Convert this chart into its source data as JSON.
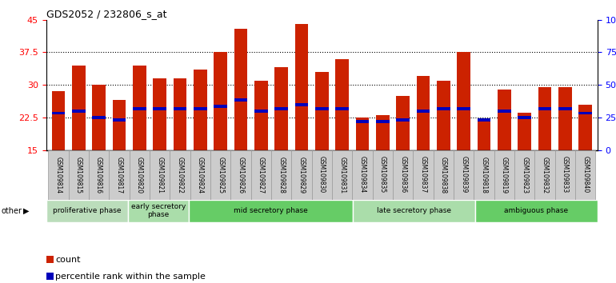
{
  "title": "GDS2052 / 232806_s_at",
  "samples": [
    "GSM109814",
    "GSM109815",
    "GSM109816",
    "GSM109817",
    "GSM109820",
    "GSM109821",
    "GSM109822",
    "GSM109824",
    "GSM109825",
    "GSM109826",
    "GSM109827",
    "GSM109828",
    "GSM109829",
    "GSM109830",
    "GSM109831",
    "GSM109834",
    "GSM109835",
    "GSM109836",
    "GSM109837",
    "GSM109838",
    "GSM109839",
    "GSM109818",
    "GSM109819",
    "GSM109823",
    "GSM109832",
    "GSM109833",
    "GSM109840"
  ],
  "count_values": [
    28.5,
    34.5,
    30.0,
    26.5,
    34.5,
    31.5,
    31.5,
    33.5,
    37.5,
    43.0,
    31.0,
    34.0,
    44.0,
    33.0,
    36.0,
    22.5,
    23.0,
    27.5,
    32.0,
    31.0,
    37.5,
    21.5,
    29.0,
    23.5,
    29.5,
    29.5,
    25.5
  ],
  "percentile_values": [
    23.5,
    24.0,
    22.5,
    22.0,
    24.5,
    24.5,
    24.5,
    24.5,
    25.0,
    26.5,
    24.0,
    24.5,
    25.5,
    24.5,
    24.5,
    21.5,
    21.5,
    22.0,
    24.0,
    24.5,
    24.5,
    22.0,
    24.0,
    22.5,
    24.5,
    24.5,
    23.5
  ],
  "phase_groups": [
    {
      "label": "proliferative phase",
      "start": 0,
      "end": 4,
      "color": "#bbddbb"
    },
    {
      "label": "early secretory\nphase",
      "start": 4,
      "end": 7,
      "color": "#aaddaa"
    },
    {
      "label": "mid secretory phase",
      "start": 7,
      "end": 15,
      "color": "#66cc66"
    },
    {
      "label": "late secretory phase",
      "start": 15,
      "end": 21,
      "color": "#aaddaa"
    },
    {
      "label": "ambiguous phase",
      "start": 21,
      "end": 27,
      "color": "#66cc66"
    }
  ],
  "ymin": 15,
  "ymax": 45,
  "yticks": [
    15,
    22.5,
    30,
    37.5,
    45
  ],
  "ytick_labels": [
    "15",
    "22.5",
    "30",
    "37.5",
    "45"
  ],
  "y2ticks": [
    0,
    25,
    50,
    75,
    100
  ],
  "y2tick_labels": [
    "0",
    "25",
    "50",
    "75",
    "100%"
  ],
  "bar_color": "#cc2200",
  "percentile_color": "#0000bb",
  "bar_width": 0.65,
  "tick_bg_color": "#cccccc",
  "tick_border_color": "#888888"
}
